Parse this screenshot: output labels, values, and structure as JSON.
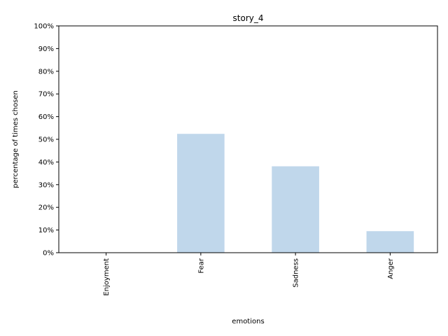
{
  "chart_data": {
    "type": "bar",
    "title": "story_4",
    "xlabel": "emotions",
    "ylabel": "percentage of times chosen",
    "categories": [
      "Enjoyment",
      "Fear",
      "Sadness",
      "Anger"
    ],
    "values": [
      0,
      52.4,
      38.1,
      9.5
    ],
    "ylim": [
      0,
      100
    ],
    "y_ticks": [
      "0%",
      "10%",
      "20%",
      "30%",
      "40%",
      "50%",
      "60%",
      "70%",
      "80%",
      "90%",
      "100%"
    ],
    "grid": false,
    "legend": "none",
    "bar_color": "#c0d7eb",
    "axis_color": "#000000"
  }
}
